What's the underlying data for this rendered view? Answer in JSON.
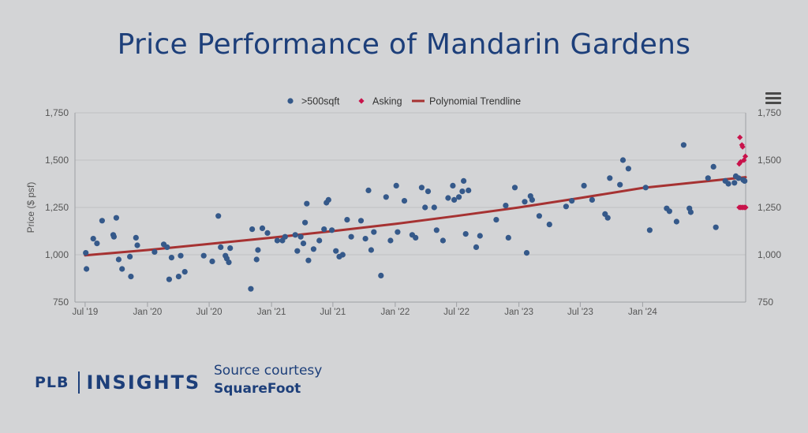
{
  "page_title": "Price Performance of Mandarin Gardens",
  "logo": {
    "left": "PLB",
    "right": "INSIGHTS"
  },
  "source": {
    "line1": "Source courtesy",
    "line2": "SquareFoot"
  },
  "menu_icon": "hamburger-menu-icon",
  "colors": {
    "background": "#d3d4d6",
    "title": "#1d3f7a",
    "points": "#35598a",
    "asking": "#c8134b",
    "trendline": "#a63232",
    "grid": "#bfc0c3"
  },
  "chart_data": {
    "type": "scatter",
    "title": "",
    "xlabel": "",
    "ylabel": "Price ($ psf)",
    "ylim": [
      750,
      1750
    ],
    "yticks": [
      750,
      1000,
      1250,
      1500,
      1750
    ],
    "ytick_labels": [
      "750",
      "1,000",
      "1,250",
      "1,500",
      "1,750"
    ],
    "x_start": "2019-06-01",
    "x_end": "2024-10-31",
    "xticks": [
      {
        "date": "2019-07-01",
        "label": "Jul '19"
      },
      {
        "date": "2020-01-01",
        "label": "Jan '20"
      },
      {
        "date": "2020-07-01",
        "label": "Jul '20"
      },
      {
        "date": "2021-01-01",
        "label": "Jan '21"
      },
      {
        "date": "2021-07-01",
        "label": "Jul '21"
      },
      {
        "date": "2022-01-01",
        "label": "Jan '22"
      },
      {
        "date": "2022-07-01",
        "label": "Jul '22"
      },
      {
        "date": "2023-01-01",
        "label": "Jan '23"
      },
      {
        "date": "2023-07-01",
        "label": "Jul '23"
      },
      {
        "date": "2024-01-01",
        "label": "Jan '24"
      }
    ],
    "legend_position": "top-center",
    "grid": true,
    "series": [
      {
        "name": ">500sqft",
        "kind": "points",
        "points": [
          [
            "2019-07-03",
            1010
          ],
          [
            "2019-07-05",
            925
          ],
          [
            "2019-07-25",
            1085
          ],
          [
            "2019-08-05",
            1060
          ],
          [
            "2019-08-20",
            1180
          ],
          [
            "2019-09-22",
            1105
          ],
          [
            "2019-09-24",
            1095
          ],
          [
            "2019-10-01",
            1195
          ],
          [
            "2019-10-08",
            975
          ],
          [
            "2019-10-18",
            925
          ],
          [
            "2019-11-10",
            990
          ],
          [
            "2019-11-13",
            885
          ],
          [
            "2019-11-28",
            1090
          ],
          [
            "2019-12-02",
            1050
          ],
          [
            "2020-01-22",
            1015
          ],
          [
            "2020-02-18",
            1055
          ],
          [
            "2020-02-28",
            1040
          ],
          [
            "2020-03-05",
            870
          ],
          [
            "2020-03-12",
            985
          ],
          [
            "2020-04-02",
            885
          ],
          [
            "2020-04-08",
            995
          ],
          [
            "2020-04-20",
            910
          ],
          [
            "2020-06-15",
            995
          ],
          [
            "2020-07-10",
            965
          ],
          [
            "2020-07-28",
            1205
          ],
          [
            "2020-08-04",
            1040
          ],
          [
            "2020-08-18",
            995
          ],
          [
            "2020-08-22",
            980
          ],
          [
            "2020-08-28",
            960
          ],
          [
            "2020-09-01",
            1035
          ],
          [
            "2020-11-01",
            820
          ],
          [
            "2020-11-05",
            1135
          ],
          [
            "2020-11-18",
            975
          ],
          [
            "2020-11-22",
            1025
          ],
          [
            "2020-12-05",
            1140
          ],
          [
            "2020-12-20",
            1115
          ],
          [
            "2021-01-18",
            1075
          ],
          [
            "2021-02-02",
            1075
          ],
          [
            "2021-02-10",
            1095
          ],
          [
            "2021-03-12",
            1105
          ],
          [
            "2021-03-18",
            1020
          ],
          [
            "2021-03-28",
            1095
          ],
          [
            "2021-04-05",
            1060
          ],
          [
            "2021-04-10",
            1170
          ],
          [
            "2021-04-15",
            1270
          ],
          [
            "2021-04-20",
            970
          ],
          [
            "2021-05-05",
            1030
          ],
          [
            "2021-05-22",
            1075
          ],
          [
            "2021-06-05",
            1135
          ],
          [
            "2021-06-12",
            1275
          ],
          [
            "2021-06-18",
            1290
          ],
          [
            "2021-06-28",
            1130
          ],
          [
            "2021-07-10",
            1020
          ],
          [
            "2021-07-20",
            990
          ],
          [
            "2021-07-30",
            1000
          ],
          [
            "2021-08-12",
            1185
          ],
          [
            "2021-08-24",
            1095
          ],
          [
            "2021-09-22",
            1180
          ],
          [
            "2021-10-05",
            1085
          ],
          [
            "2021-10-14",
            1340
          ],
          [
            "2021-10-22",
            1025
          ],
          [
            "2021-10-30",
            1120
          ],
          [
            "2021-11-20",
            890
          ],
          [
            "2021-12-05",
            1305
          ],
          [
            "2021-12-18",
            1075
          ],
          [
            "2022-01-04",
            1365
          ],
          [
            "2022-01-08",
            1120
          ],
          [
            "2022-01-28",
            1285
          ],
          [
            "2022-02-20",
            1105
          ],
          [
            "2022-03-02",
            1090
          ],
          [
            "2022-03-20",
            1355
          ],
          [
            "2022-03-30",
            1250
          ],
          [
            "2022-04-08",
            1335
          ],
          [
            "2022-04-26",
            1250
          ],
          [
            "2022-05-03",
            1130
          ],
          [
            "2022-05-22",
            1075
          ],
          [
            "2022-06-06",
            1300
          ],
          [
            "2022-06-20",
            1365
          ],
          [
            "2022-06-24",
            1290
          ],
          [
            "2022-07-08",
            1305
          ],
          [
            "2022-07-18",
            1335
          ],
          [
            "2022-07-22",
            1390
          ],
          [
            "2022-07-28",
            1110
          ],
          [
            "2022-08-05",
            1340
          ],
          [
            "2022-08-28",
            1040
          ],
          [
            "2022-09-08",
            1100
          ],
          [
            "2022-10-26",
            1185
          ],
          [
            "2022-11-23",
            1260
          ],
          [
            "2022-12-01",
            1090
          ],
          [
            "2022-12-20",
            1355
          ],
          [
            "2023-01-18",
            1280
          ],
          [
            "2023-01-24",
            1010
          ],
          [
            "2023-02-04",
            1310
          ],
          [
            "2023-02-09",
            1290
          ],
          [
            "2023-03-02",
            1205
          ],
          [
            "2023-04-01",
            1160
          ],
          [
            "2023-05-20",
            1255
          ],
          [
            "2023-06-06",
            1285
          ],
          [
            "2023-07-12",
            1365
          ],
          [
            "2023-08-05",
            1290
          ],
          [
            "2023-09-12",
            1215
          ],
          [
            "2023-09-20",
            1195
          ],
          [
            "2023-09-26",
            1405
          ],
          [
            "2023-10-26",
            1370
          ],
          [
            "2023-11-04",
            1500
          ],
          [
            "2023-11-20",
            1455
          ],
          [
            "2024-01-10",
            1355
          ],
          [
            "2024-01-22",
            1130
          ],
          [
            "2024-03-12",
            1245
          ],
          [
            "2024-03-20",
            1230
          ],
          [
            "2024-04-10",
            1175
          ],
          [
            "2024-05-01",
            1580
          ],
          [
            "2024-05-18",
            1245
          ],
          [
            "2024-05-22",
            1225
          ],
          [
            "2024-07-12",
            1405
          ],
          [
            "2024-07-28",
            1465
          ],
          [
            "2024-08-04",
            1145
          ],
          [
            "2024-09-01",
            1390
          ],
          [
            "2024-09-10",
            1375
          ],
          [
            "2024-09-28",
            1380
          ],
          [
            "2024-10-02",
            1415
          ],
          [
            "2024-10-10",
            1405
          ],
          [
            "2024-10-24",
            1395
          ],
          [
            "2024-10-28",
            1390
          ]
        ]
      },
      {
        "name": "Asking",
        "kind": "diamonds",
        "points": [
          [
            "2024-10-14",
            1620
          ],
          [
            "2024-10-20",
            1580
          ],
          [
            "2024-10-22",
            1570
          ],
          [
            "2024-10-26",
            1500
          ],
          [
            "2024-10-16",
            1490
          ],
          [
            "2024-10-30",
            1520
          ],
          [
            "2024-10-12",
            1480
          ],
          [
            "2024-10-12",
            1250
          ],
          [
            "2024-10-16",
            1250
          ],
          [
            "2024-10-20",
            1250
          ],
          [
            "2024-10-24",
            1250
          ],
          [
            "2024-10-28",
            1250
          ],
          [
            "2024-10-31",
            1250
          ]
        ]
      },
      {
        "name": "Polynomial Trendline",
        "kind": "line",
        "points": [
          [
            "2019-07-01",
            997
          ],
          [
            "2020-01-01",
            1025
          ],
          [
            "2020-07-01",
            1057
          ],
          [
            "2021-01-01",
            1090
          ],
          [
            "2021-07-01",
            1125
          ],
          [
            "2022-01-01",
            1163
          ],
          [
            "2022-07-01",
            1205
          ],
          [
            "2023-01-01",
            1250
          ],
          [
            "2023-07-01",
            1300
          ],
          [
            "2024-01-01",
            1353
          ],
          [
            "2024-10-31",
            1410
          ]
        ]
      }
    ]
  }
}
